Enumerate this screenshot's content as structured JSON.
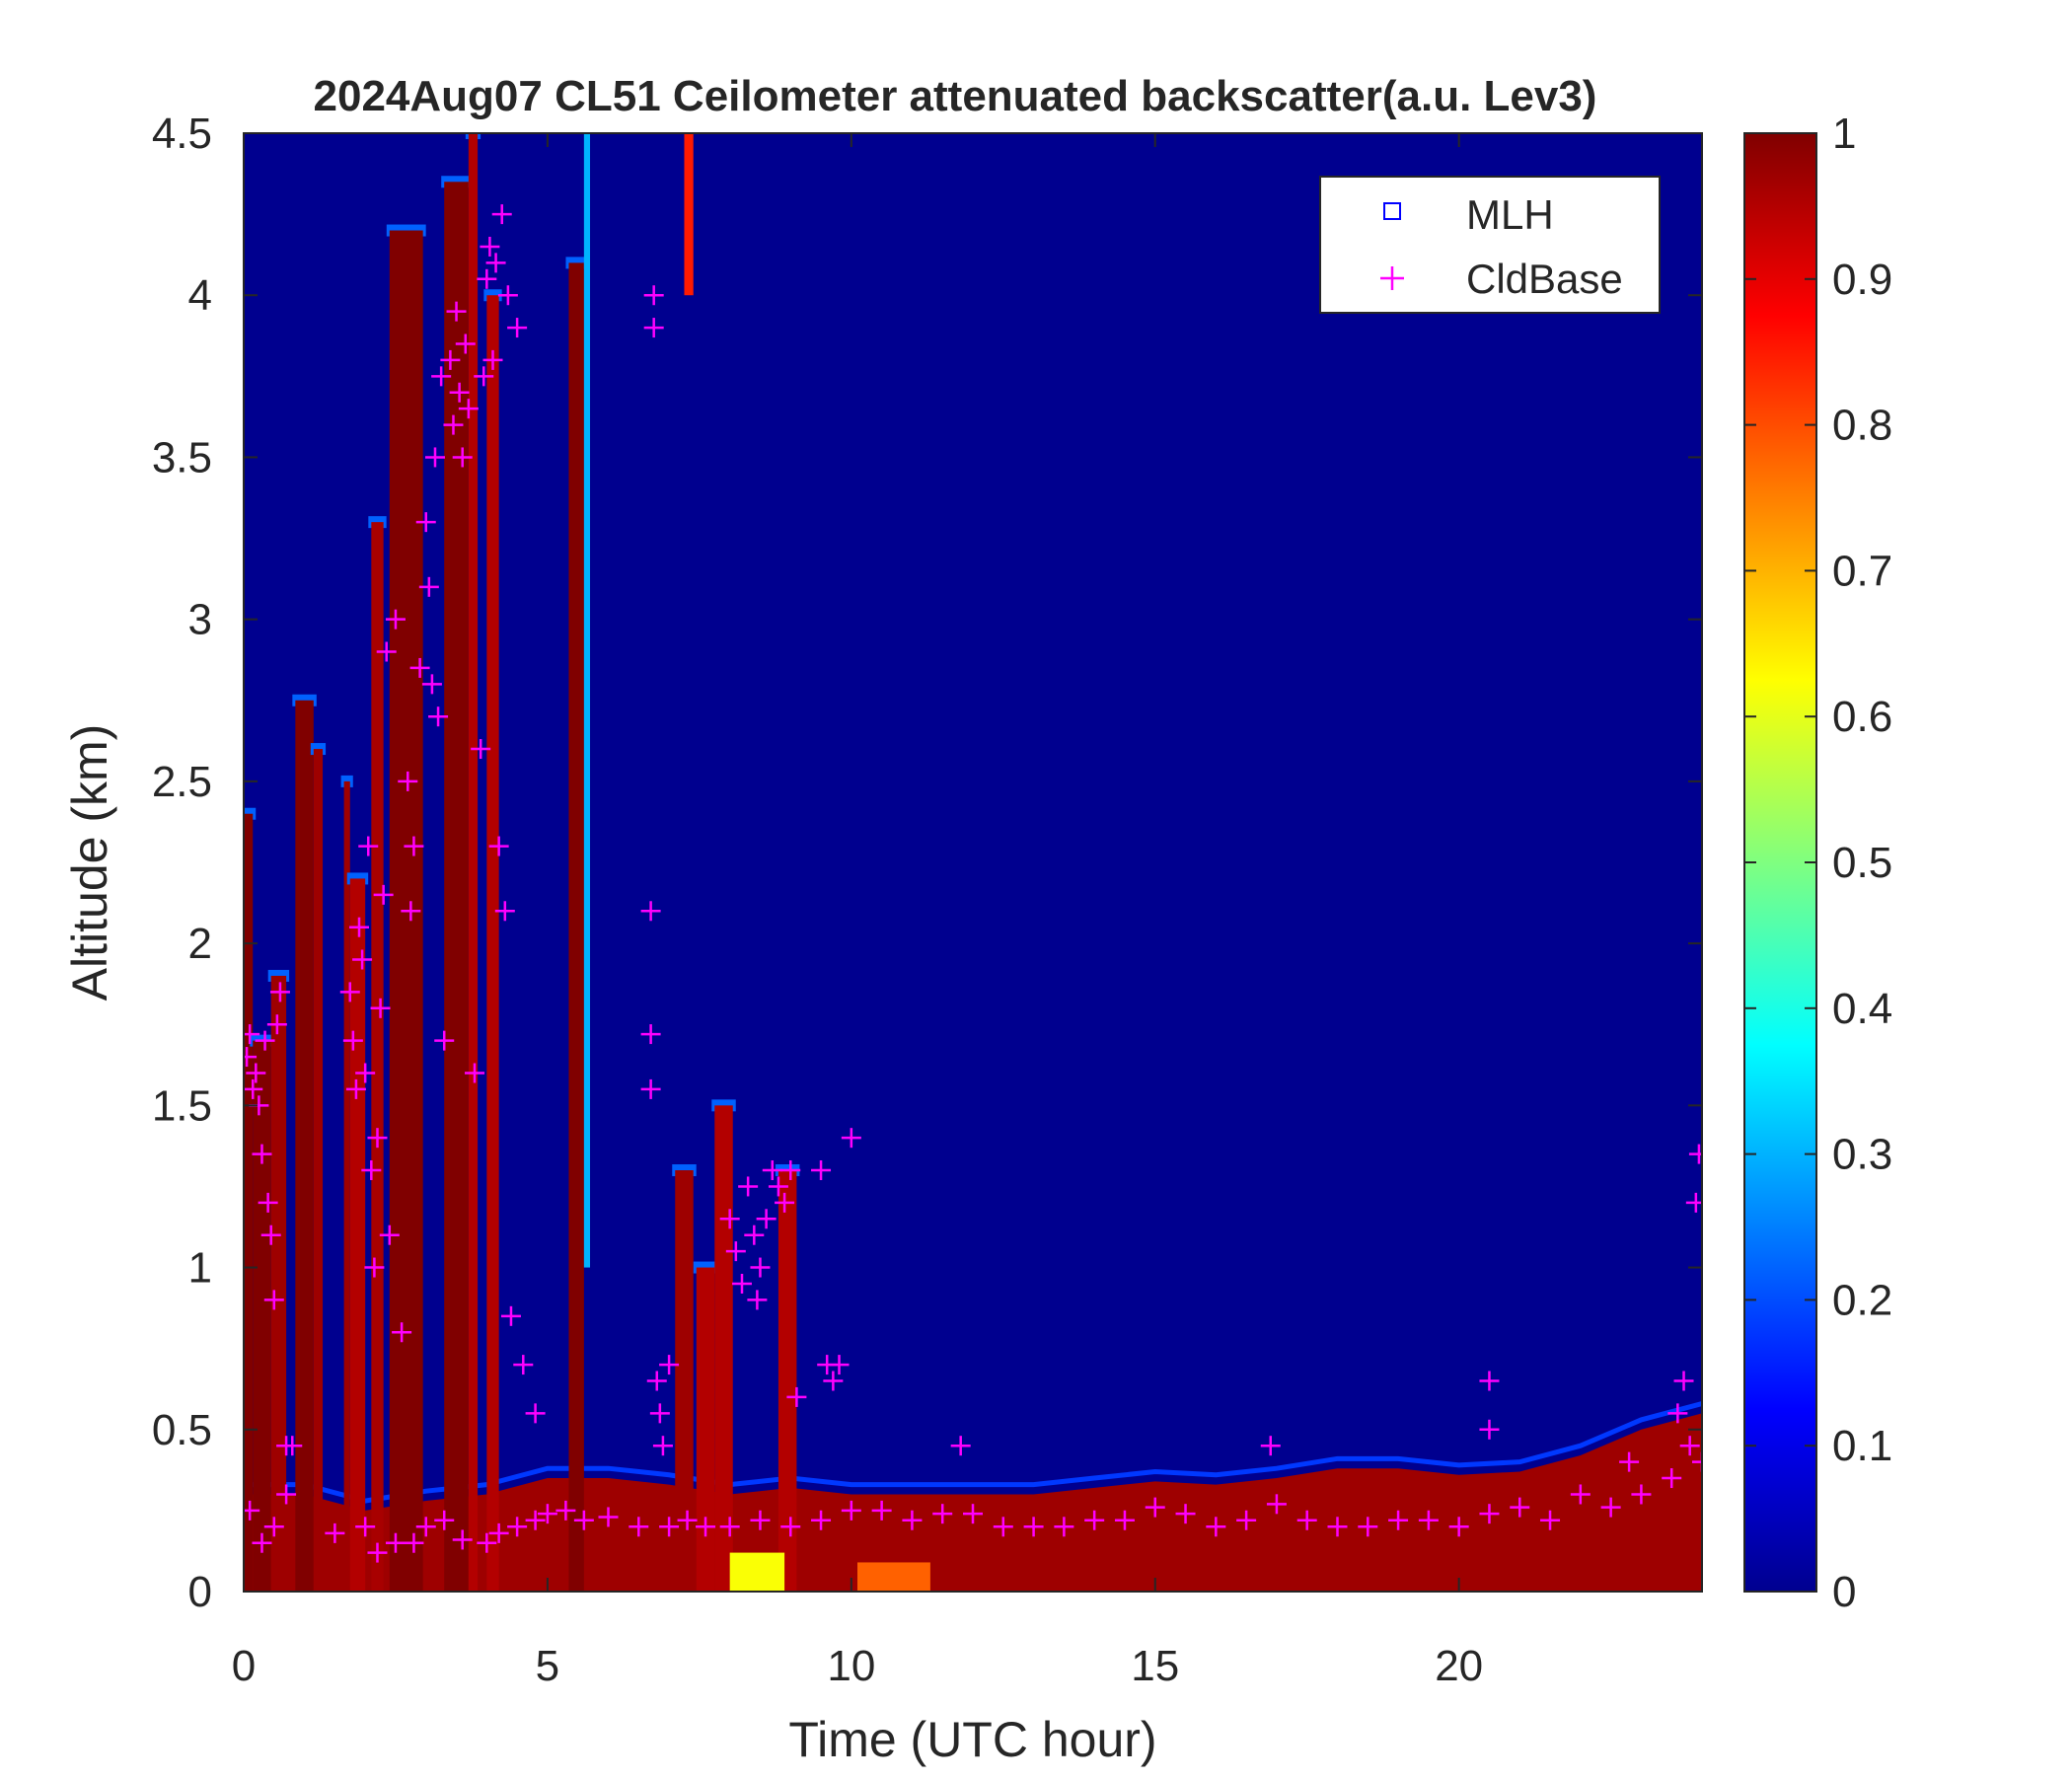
{
  "chart_data": {
    "type": "heatmap",
    "title": "2024Aug07 CL51 Ceilometer attenuated backscatter(a.u. Lev3)",
    "xlabel": "Time (UTC hour)",
    "ylabel": "Altitude (km)",
    "xlim": [
      0,
      24
    ],
    "ylim": [
      0,
      4.5
    ],
    "xticks": [
      "0",
      "5",
      "10",
      "15",
      "20"
    ],
    "xtick_values": [
      0,
      5,
      10,
      15,
      20
    ],
    "yticks": [
      "0",
      "0.5",
      "1",
      "1.5",
      "2",
      "2.5",
      "3",
      "3.5",
      "4",
      "4.5"
    ],
    "ytick_values": [
      0,
      0.5,
      1,
      1.5,
      2,
      2.5,
      3,
      3.5,
      4,
      4.5
    ],
    "colorbar": {
      "colormap": "jet",
      "range": [
        0,
        1
      ],
      "ticks": [
        "0",
        "0.1",
        "0.2",
        "0.3",
        "0.4",
        "0.5",
        "0.6",
        "0.7",
        "0.8",
        "0.9",
        "1"
      ],
      "tick_values": [
        0,
        0.1,
        0.2,
        0.3,
        0.4,
        0.5,
        0.6,
        0.7,
        0.8,
        0.9,
        1
      ]
    },
    "legend": {
      "placement": "top-right",
      "entries": [
        {
          "label": "MLH",
          "marker": "square",
          "color": "#0000ff"
        },
        {
          "label": "CldBase",
          "marker": "plus",
          "color": "#ff00ff"
        }
      ]
    },
    "background_value": 0.02,
    "columns": [
      {
        "x0": 0.0,
        "x1": 0.15,
        "top": 2.4,
        "value": 1.0
      },
      {
        "x0": 0.15,
        "x1": 0.45,
        "top": 1.7,
        "value": 1.0
      },
      {
        "x0": 0.45,
        "x1": 0.7,
        "top": 1.9,
        "value": 0.97
      },
      {
        "x0": 0.85,
        "x1": 1.15,
        "top": 2.75,
        "value": 1.0
      },
      {
        "x0": 1.15,
        "x1": 1.3,
        "top": 2.6,
        "value": 0.97
      },
      {
        "x0": 1.65,
        "x1": 1.75,
        "top": 2.5,
        "value": 0.97
      },
      {
        "x0": 1.75,
        "x1": 2.0,
        "top": 2.2,
        "value": 0.95
      },
      {
        "x0": 2.1,
        "x1": 2.3,
        "top": 3.3,
        "value": 0.96
      },
      {
        "x0": 2.4,
        "x1": 2.95,
        "top": 4.2,
        "value": 1.0
      },
      {
        "x0": 3.3,
        "x1": 3.7,
        "top": 4.35,
        "value": 1.0
      },
      {
        "x0": 3.7,
        "x1": 3.85,
        "top": 4.5,
        "value": 0.95
      },
      {
        "x0": 4.0,
        "x1": 4.2,
        "top": 4.0,
        "value": 0.95
      },
      {
        "x0": 5.35,
        "x1": 5.6,
        "top": 4.1,
        "value": 1.0
      },
      {
        "x0": 7.1,
        "x1": 7.4,
        "top": 1.3,
        "value": 0.97
      },
      {
        "x0": 7.45,
        "x1": 7.75,
        "top": 1.0,
        "value": 0.95
      },
      {
        "x0": 7.75,
        "x1": 8.05,
        "top": 1.5,
        "value": 0.95
      },
      {
        "x0": 8.8,
        "x1": 9.1,
        "top": 1.3,
        "value": 0.95
      }
    ],
    "streaks": [
      {
        "x0": 7.25,
        "x1": 7.4,
        "y0": 4.0,
        "y1": 4.5,
        "value": 0.85
      },
      {
        "x0": 5.6,
        "x1": 5.7,
        "y0": 1.0,
        "y1": 4.5,
        "value": 0.3
      }
    ],
    "boundary_layer": [
      [
        0,
        0.3
      ],
      [
        1,
        0.3
      ],
      [
        2,
        0.25
      ],
      [
        3,
        0.28
      ],
      [
        4,
        0.3
      ],
      [
        5,
        0.35
      ],
      [
        6,
        0.35
      ],
      [
        7,
        0.33
      ],
      [
        8,
        0.3
      ],
      [
        9,
        0.32
      ],
      [
        10,
        0.3
      ],
      [
        11,
        0.3
      ],
      [
        12,
        0.3
      ],
      [
        13,
        0.3
      ],
      [
        14,
        0.32
      ],
      [
        15,
        0.34
      ],
      [
        16,
        0.33
      ],
      [
        17,
        0.35
      ],
      [
        18,
        0.38
      ],
      [
        19,
        0.38
      ],
      [
        20,
        0.36
      ],
      [
        21,
        0.37
      ],
      [
        22,
        0.42
      ],
      [
        23,
        0.5
      ],
      [
        24,
        0.55
      ]
    ],
    "surface_hotspots": [
      {
        "x0": 8.0,
        "x1": 8.9,
        "y0": 0.0,
        "y1": 0.12,
        "value": 0.62
      },
      {
        "x0": 10.1,
        "x1": 11.3,
        "y0": 0.0,
        "y1": 0.09,
        "value": 0.78
      }
    ],
    "cldbase": {
      "low_layer": [
        [
          0.1,
          0.25
        ],
        [
          0.3,
          0.15
        ],
        [
          0.5,
          0.2
        ],
        [
          0.7,
          0.3
        ],
        [
          1.5,
          0.18
        ],
        [
          2.0,
          0.2
        ],
        [
          2.2,
          0.12
        ],
        [
          2.5,
          0.15
        ],
        [
          2.8,
          0.15
        ],
        [
          3.0,
          0.2
        ],
        [
          3.3,
          0.22
        ],
        [
          3.6,
          0.16
        ],
        [
          4.0,
          0.15
        ],
        [
          4.2,
          0.18
        ],
        [
          4.5,
          0.2
        ],
        [
          4.8,
          0.22
        ],
        [
          5.0,
          0.24
        ],
        [
          5.3,
          0.25
        ],
        [
          5.6,
          0.22
        ],
        [
          6.0,
          0.23
        ],
        [
          6.5,
          0.2
        ],
        [
          7.0,
          0.2
        ],
        [
          7.3,
          0.22
        ],
        [
          7.6,
          0.2
        ],
        [
          8.0,
          0.2
        ],
        [
          8.5,
          0.22
        ],
        [
          9.0,
          0.2
        ],
        [
          9.5,
          0.22
        ],
        [
          10.0,
          0.25
        ],
        [
          10.5,
          0.25
        ],
        [
          11.0,
          0.22
        ],
        [
          11.5,
          0.24
        ],
        [
          12.0,
          0.24
        ],
        [
          12.5,
          0.2
        ],
        [
          13.0,
          0.2
        ],
        [
          13.5,
          0.2
        ],
        [
          14.0,
          0.22
        ],
        [
          14.5,
          0.22
        ],
        [
          15.0,
          0.26
        ],
        [
          15.5,
          0.24
        ],
        [
          16.0,
          0.2
        ],
        [
          16.5,
          0.22
        ],
        [
          17.0,
          0.27
        ],
        [
          17.5,
          0.22
        ],
        [
          18.0,
          0.2
        ],
        [
          18.5,
          0.2
        ],
        [
          19.0,
          0.22
        ],
        [
          19.5,
          0.22
        ],
        [
          20.0,
          0.2
        ],
        [
          20.5,
          0.24
        ],
        [
          21.0,
          0.26
        ],
        [
          21.5,
          0.22
        ],
        [
          22.0,
          0.3
        ],
        [
          22.5,
          0.26
        ],
        [
          23.0,
          0.3
        ],
        [
          23.5,
          0.35
        ],
        [
          24.0,
          0.4
        ]
      ],
      "scatter": [
        [
          0.05,
          1.65
        ],
        [
          0.1,
          1.72
        ],
        [
          0.15,
          1.55
        ],
        [
          0.2,
          1.6
        ],
        [
          0.25,
          1.5
        ],
        [
          0.3,
          1.35
        ],
        [
          0.35,
          1.7
        ],
        [
          0.4,
          1.2
        ],
        [
          0.45,
          1.1
        ],
        [
          0.5,
          0.9
        ],
        [
          0.55,
          1.75
        ],
        [
          0.6,
          1.85
        ],
        [
          0.7,
          0.45
        ],
        [
          0.8,
          0.45
        ],
        [
          1.75,
          1.85
        ],
        [
          1.8,
          1.7
        ],
        [
          1.85,
          1.55
        ],
        [
          1.9,
          2.05
        ],
        [
          1.95,
          1.95
        ],
        [
          2.0,
          1.6
        ],
        [
          2.05,
          2.3
        ],
        [
          2.1,
          1.3
        ],
        [
          2.15,
          1.0
        ],
        [
          2.2,
          1.4
        ],
        [
          2.25,
          1.8
        ],
        [
          2.3,
          2.15
        ],
        [
          2.35,
          2.9
        ],
        [
          2.4,
          1.1
        ],
        [
          2.5,
          3.0
        ],
        [
          2.6,
          0.8
        ],
        [
          2.7,
          2.5
        ],
        [
          2.75,
          2.1
        ],
        [
          2.8,
          2.3
        ],
        [
          2.9,
          2.85
        ],
        [
          3.0,
          3.3
        ],
        [
          3.05,
          3.1
        ],
        [
          3.1,
          2.8
        ],
        [
          3.15,
          3.5
        ],
        [
          3.2,
          2.7
        ],
        [
          3.25,
          3.75
        ],
        [
          3.3,
          1.7
        ],
        [
          3.4,
          3.8
        ],
        [
          3.45,
          3.6
        ],
        [
          3.5,
          3.95
        ],
        [
          3.55,
          3.7
        ],
        [
          3.6,
          3.5
        ],
        [
          3.65,
          3.85
        ],
        [
          3.7,
          3.65
        ],
        [
          3.8,
          1.6
        ],
        [
          3.9,
          2.6
        ],
        [
          3.95,
          3.75
        ],
        [
          4.0,
          4.05
        ],
        [
          4.05,
          4.15
        ],
        [
          4.1,
          3.8
        ],
        [
          4.15,
          4.1
        ],
        [
          4.2,
          2.3
        ],
        [
          4.25,
          4.25
        ],
        [
          4.3,
          2.1
        ],
        [
          4.35,
          4.0
        ],
        [
          4.4,
          0.85
        ],
        [
          4.5,
          3.9
        ],
        [
          4.6,
          0.7
        ],
        [
          4.8,
          0.55
        ],
        [
          6.7,
          2.1
        ],
        [
          6.7,
          1.72
        ],
        [
          6.7,
          1.55
        ],
        [
          6.75,
          4.0
        ],
        [
          6.75,
          3.9
        ],
        [
          6.8,
          0.65
        ],
        [
          6.85,
          0.55
        ],
        [
          6.9,
          0.45
        ],
        [
          7.0,
          0.7
        ],
        [
          8.0,
          1.15
        ],
        [
          8.1,
          1.05
        ],
        [
          8.2,
          0.95
        ],
        [
          8.3,
          1.25
        ],
        [
          8.4,
          1.1
        ],
        [
          8.45,
          0.9
        ],
        [
          8.5,
          1.0
        ],
        [
          8.6,
          1.15
        ],
        [
          8.7,
          1.3
        ],
        [
          8.8,
          1.25
        ],
        [
          8.9,
          1.2
        ],
        [
          9.0,
          1.3
        ],
        [
          9.1,
          0.6
        ],
        [
          9.5,
          1.3
        ],
        [
          9.6,
          0.7
        ],
        [
          9.7,
          0.65
        ],
        [
          9.8,
          0.7
        ],
        [
          10.0,
          1.4
        ],
        [
          11.8,
          0.45
        ],
        [
          16.9,
          0.45
        ],
        [
          20.5,
          0.65
        ],
        [
          20.5,
          0.5
        ],
        [
          22.8,
          0.4
        ],
        [
          23.6,
          0.55
        ],
        [
          23.7,
          0.65
        ],
        [
          23.8,
          0.45
        ],
        [
          23.9,
          1.2
        ],
        [
          23.95,
          1.35
        ]
      ]
    }
  }
}
